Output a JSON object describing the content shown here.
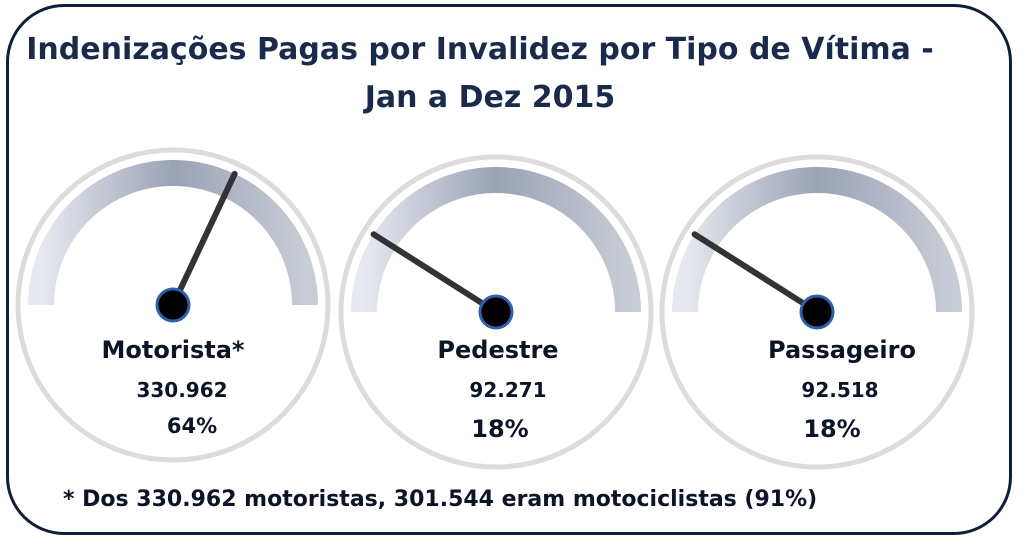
{
  "title": "Indenizações Pagas por Invalidez por Tipo de Vítima -",
  "subtitle": "Jan a Dez 2015",
  "footnote": "* Dos 330.962 motoristas, 301.544 eram motociclistas (91%)",
  "chart_data": {
    "type": "gauge",
    "gauges": [
      {
        "label": "Motorista*",
        "value": "330.962",
        "percent": "64%",
        "fraction": 0.64
      },
      {
        "label": "Pedestre",
        "value": "92.271",
        "percent": "18%",
        "fraction": 0.18
      },
      {
        "label": "Passageiro",
        "value": "92.518",
        "percent": "18%",
        "fraction": 0.18
      }
    ]
  },
  "colors": {
    "frame": "#0f1f3a",
    "title": "#1a2a4a",
    "needle": "#333333",
    "hub": "#000000",
    "hub_stroke": "#2e5fa8",
    "dial_ring": "#dcdcdc",
    "arc_light": "#e6e9ef",
    "arc_dark": "#7d869c"
  }
}
